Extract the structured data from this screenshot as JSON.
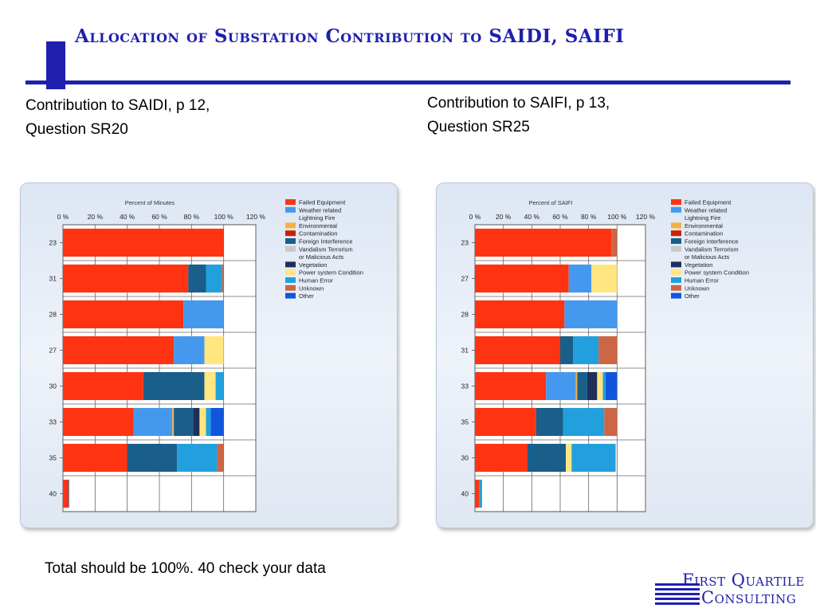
{
  "slide": {
    "title": "Allocation of Substation Contribution to SAIDI, SAIFI",
    "left_subtitle": [
      "Contribution to SAIDI, p 12,",
      "Question SR20"
    ],
    "right_subtitle": [
      "Contribution to SAIFI, p 13,",
      "Question SR25"
    ],
    "footnote": "Total should be 100%.  40 check your data",
    "logo": {
      "line1": "First Quartile",
      "line2": "Consulting"
    }
  },
  "legend": [
    {
      "label": "Failed Equipment",
      "color": "#ff3311"
    },
    {
      "label": [
        "Weather related",
        "Lightning Fire"
      ],
      "color": "#4499ee"
    },
    {
      "label": "Environmental",
      "color": "#f5b041"
    },
    {
      "label": "Contamination",
      "color": "#cc2200"
    },
    {
      "label": "Foreign Interference",
      "color": "#1a5e8a"
    },
    {
      "label": [
        "Vandalism Terrorism",
        "or Malicious Acts"
      ],
      "color": "#c8c8c8"
    },
    {
      "label": "Vegetation",
      "color": "#1e2f5a"
    },
    {
      "label": "Power system Condition",
      "color": "#ffe680"
    },
    {
      "label": "Human Error",
      "color": "#22a0dd"
    },
    {
      "label": "Unknown",
      "color": "#cc6644"
    },
    {
      "label": "Other",
      "color": "#1155dd"
    }
  ],
  "chart_data": [
    {
      "type": "bar",
      "orientation": "horizontal",
      "stacked": true,
      "title": "Percent of Minutes",
      "xlim": [
        0,
        120
      ],
      "xticks": [
        "0 %",
        "20 %",
        "40 %",
        "60 %",
        "80 %",
        "100 %",
        "120 %"
      ],
      "categories": [
        "23",
        "31",
        "28",
        "27",
        "30",
        "33",
        "35",
        "40"
      ],
      "series": [
        {
          "name": "Failed Equipment",
          "values": [
            100,
            78,
            75,
            69,
            50,
            44,
            40,
            3.5
          ]
        },
        {
          "name": "Weather related Lightning Fire",
          "values": [
            0,
            0,
            25,
            19,
            0,
            24,
            0,
            0
          ]
        },
        {
          "name": "Environmental",
          "values": [
            0,
            0,
            0,
            0,
            0,
            1,
            0,
            0
          ]
        },
        {
          "name": "Contamination",
          "values": [
            0,
            0,
            0,
            0,
            0,
            0,
            0,
            0
          ]
        },
        {
          "name": "Foreign Interference",
          "values": [
            0,
            11,
            0,
            0,
            38,
            12,
            31,
            0
          ]
        },
        {
          "name": "Vandalism Terrorism or Malicious Acts",
          "values": [
            0,
            0,
            0,
            0,
            0,
            0,
            0,
            0
          ]
        },
        {
          "name": "Vegetation",
          "values": [
            0,
            0,
            0,
            0,
            0,
            4,
            0,
            0
          ]
        },
        {
          "name": "Power system Condition",
          "values": [
            0,
            0,
            0,
            12,
            7,
            4,
            0,
            0
          ]
        },
        {
          "name": "Human Error",
          "values": [
            0,
            10,
            0,
            0,
            5,
            3,
            25,
            0.5
          ]
        },
        {
          "name": "Unknown",
          "values": [
            0,
            1,
            0,
            0,
            0,
            0,
            4,
            0
          ]
        },
        {
          "name": "Other",
          "values": [
            0,
            0,
            0,
            0,
            0,
            8,
            0,
            0
          ]
        }
      ]
    },
    {
      "type": "bar",
      "orientation": "horizontal",
      "stacked": true,
      "title": "Percent of SAIFI",
      "xlim": [
        0,
        120
      ],
      "xticks": [
        "0 %",
        "20 %",
        "40 %",
        "60 %",
        "80 %",
        "100 %",
        "120 %"
      ],
      "categories": [
        "23",
        "27",
        "28",
        "31",
        "33",
        "35",
        "30",
        "40"
      ],
      "series": [
        {
          "name": "Failed Equipment",
          "values": [
            96,
            66,
            63,
            60,
            50,
            43,
            37,
            3
          ]
        },
        {
          "name": "Weather related Lightning Fire",
          "values": [
            0,
            16,
            37,
            0,
            21,
            0,
            0,
            0
          ]
        },
        {
          "name": "Environmental",
          "values": [
            0,
            0,
            0,
            0,
            1,
            0,
            0,
            0
          ]
        },
        {
          "name": "Contamination",
          "values": [
            0,
            0,
            0,
            0,
            0,
            0,
            0,
            0
          ]
        },
        {
          "name": "Foreign Interference",
          "values": [
            0,
            0,
            0,
            9,
            7,
            19,
            27,
            0
          ]
        },
        {
          "name": "Vandalism Terrorism or Malicious Acts",
          "values": [
            0,
            0,
            0,
            0,
            0,
            0,
            0,
            0
          ]
        },
        {
          "name": "Vegetation",
          "values": [
            0,
            0,
            0,
            0,
            7,
            0,
            0,
            0
          ]
        },
        {
          "name": "Power system Condition",
          "values": [
            0,
            18,
            0,
            0,
            4,
            0,
            4,
            0
          ]
        },
        {
          "name": "Human Error",
          "values": [
            0,
            0,
            0,
            18,
            2,
            29,
            31,
            2
          ]
        },
        {
          "name": "Unknown",
          "values": [
            4,
            0,
            0,
            13,
            0,
            9,
            0,
            0
          ]
        },
        {
          "name": "Other",
          "values": [
            0,
            0,
            0,
            0,
            8,
            0,
            0,
            0
          ]
        }
      ]
    }
  ]
}
